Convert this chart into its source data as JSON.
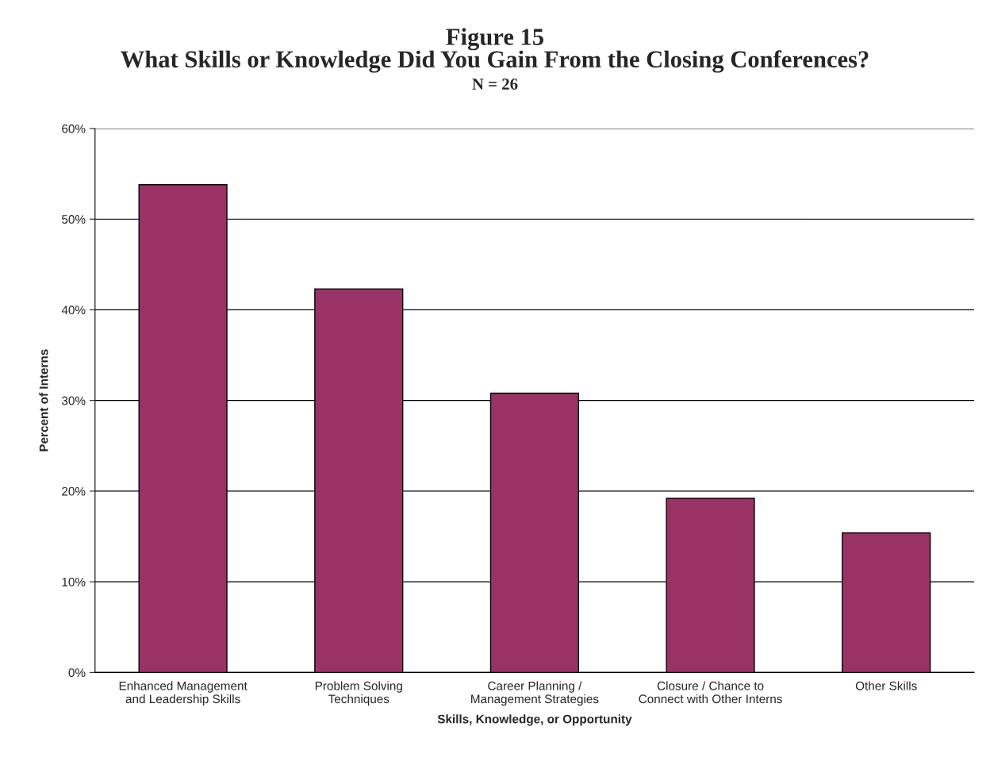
{
  "chart_data": {
    "type": "bar",
    "title": "Figure 15\nWhat Skills or Knowledge Did You Gain From the Closing Conferences?",
    "subtitle": "N = 26",
    "xlabel": "Skills, Knowledge, or Opportunity",
    "ylabel": "Percent of Interns",
    "categories": [
      "Enhanced Management\nand Leadership Skills",
      "Problem Solving\nTechniques",
      "Career Planning /\nManagement Strategies",
      "Closure / Chance to\nConnect with Other Interns",
      "Other Skills"
    ],
    "values": [
      53.8,
      42.3,
      30.8,
      19.2,
      15.4
    ],
    "color": "#993366",
    "ylim": [
      0,
      60
    ],
    "yticks": [
      {
        "value": 0,
        "label": "0%"
      },
      {
        "value": 10,
        "label": "10%"
      },
      {
        "value": 20,
        "label": "20%"
      },
      {
        "value": 30,
        "label": "30%"
      },
      {
        "value": 40,
        "label": "40%"
      },
      {
        "value": 50,
        "label": "50%"
      },
      {
        "value": 60,
        "label": "60%"
      }
    ],
    "grid": "y",
    "legend": false
  }
}
